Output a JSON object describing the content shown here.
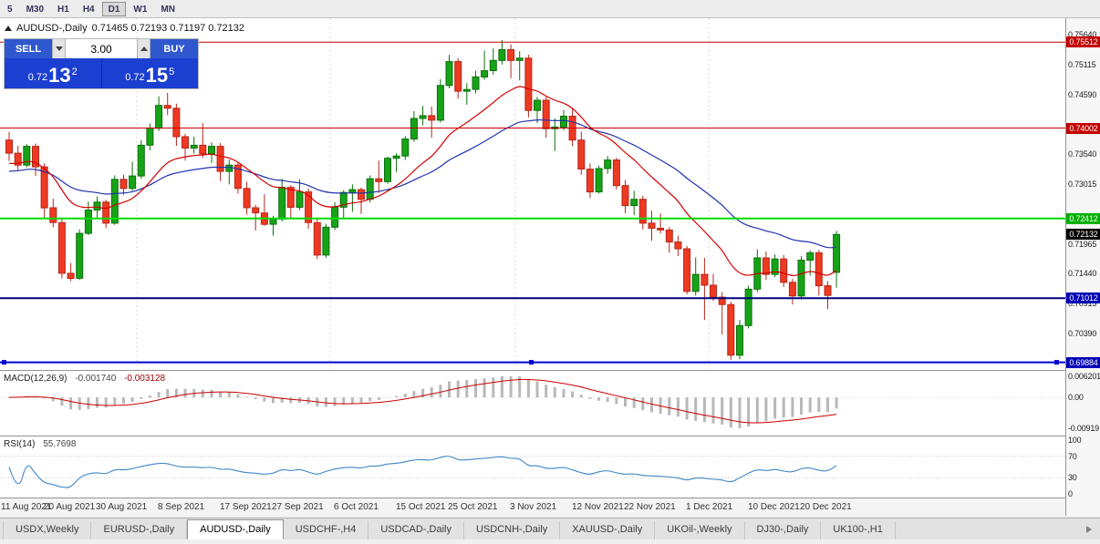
{
  "toolbar": {
    "timeframes": [
      {
        "label": "5",
        "active": false
      },
      {
        "label": "M30",
        "active": false
      },
      {
        "label": "H1",
        "active": false
      },
      {
        "label": "H4",
        "active": false
      },
      {
        "label": "D1",
        "active": true
      },
      {
        "label": "W1",
        "active": false
      },
      {
        "label": "MN",
        "active": false
      }
    ]
  },
  "chart_header": {
    "symbol": "AUDUSD-,Daily",
    "ohlc_text": "0.71465 0.72193 0.71197 0.72132"
  },
  "trade_panel": {
    "sell_label": "SELL",
    "buy_label": "BUY",
    "lot_value": "3.00",
    "sell_price": {
      "base": "0.72",
      "big": "13",
      "sup": "2"
    },
    "buy_price": {
      "base": "0.72",
      "big": "15",
      "sup": "5"
    }
  },
  "price_axis": {
    "labels": [
      {
        "text": "0.75640",
        "price": 0.7564
      },
      {
        "text": "0.75115",
        "price": 0.75115
      },
      {
        "text": "0.74590",
        "price": 0.7459
      },
      {
        "text": "0.73540",
        "price": 0.7354
      },
      {
        "text": "0.73015",
        "price": 0.73015
      },
      {
        "text": "0.71965",
        "price": 0.71965
      },
      {
        "text": "0.71440",
        "price": 0.7144
      },
      {
        "text": "0.70915",
        "price": 0.70915
      },
      {
        "text": "0.70390",
        "price": 0.7039
      }
    ],
    "badges": [
      {
        "text": "0.75512",
        "price": 0.75512,
        "bg": "#c40000"
      },
      {
        "text": "0.74002",
        "price": 0.74002,
        "bg": "#c40000"
      },
      {
        "text": "0.72412",
        "price": 0.72412,
        "bg": "#00b000"
      },
      {
        "text": "0.72132",
        "price": 0.72132,
        "bg": "#000000"
      },
      {
        "text": "0.71012",
        "price": 0.71012,
        "bg": "#0000b8"
      },
      {
        "text": "0.69884",
        "price": 0.69884,
        "bg": "#0000b8"
      }
    ]
  },
  "hlines": [
    {
      "price": 0.75512,
      "color": "#c40000",
      "width": 1
    },
    {
      "price": 0.74002,
      "color": "#c40000",
      "width": 1
    },
    {
      "price": 0.72412,
      "color": "#00dd00",
      "width": 2
    },
    {
      "price": 0.71012,
      "color": "#000080",
      "width": 2
    },
    {
      "price": 0.69884,
      "color": "#0000d0",
      "width": 2,
      "handles": true
    }
  ],
  "indicators": {
    "macd": {
      "label": "MACD(12,26,9)",
      "value_main": "-0.001740",
      "value_signal": "-0.003128",
      "axis_max": "0.006201",
      "axis_zero": "0.00",
      "axis_min": "-0.00919",
      "histogram_color": "#b8b8b8",
      "signal_color": "#cc0000"
    },
    "rsi": {
      "label": "RSI(14)",
      "value": "55.7698",
      "axis_labels": [
        "100",
        "70",
        "30",
        "0"
      ],
      "levels": [
        70,
        30
      ],
      "line_color": "#3e86c8"
    }
  },
  "chart_data": {
    "type": "candlestick",
    "title": "AUDUSD-,Daily",
    "y_range": [
      0.6975,
      0.759
    ],
    "colors": {
      "up": "#17a317",
      "up_border": "#0e700e",
      "down": "#ee3a22",
      "down_border": "#b5271a"
    },
    "ma": [
      {
        "period": 13,
        "color": "#d40000"
      },
      {
        "period": 30,
        "color": "#1f33b0"
      }
    ],
    "month_separator_indices": [
      15,
      37,
      58,
      80
    ],
    "date_ticks": [
      {
        "index": 0,
        "label": "11 Aug 2021"
      },
      {
        "index": 7,
        "label": "20 Aug 2021"
      },
      {
        "index": 13,
        "label": "30 Aug 2021"
      },
      {
        "index": 20,
        "label": "8 Sep 2021"
      },
      {
        "index": 27,
        "label": "17 Sep 2021"
      },
      {
        "index": 33,
        "label": "27 Sep 2021"
      },
      {
        "index": 40,
        "label": "6 Oct 2021"
      },
      {
        "index": 47,
        "label": "15 Oct 2021"
      },
      {
        "index": 53,
        "label": "25 Oct 2021"
      },
      {
        "index": 60,
        "label": "3 Nov 2021"
      },
      {
        "index": 67,
        "label": "12 Nov 2021"
      },
      {
        "index": 73,
        "label": "22 Nov 2021"
      },
      {
        "index": 80,
        "label": "1 Dec 2021"
      },
      {
        "index": 87,
        "label": "10 Dec 2021"
      },
      {
        "index": 93,
        "label": "20 Dec 2021"
      }
    ],
    "ohlc": [
      [
        0.7379,
        0.7393,
        0.7342,
        0.7356
      ],
      [
        0.7356,
        0.7369,
        0.7326,
        0.7335
      ],
      [
        0.7335,
        0.7372,
        0.7331,
        0.7368
      ],
      [
        0.7368,
        0.7373,
        0.7316,
        0.7332
      ],
      [
        0.7332,
        0.7338,
        0.7241,
        0.726
      ],
      [
        0.726,
        0.7276,
        0.7226,
        0.7234
      ],
      [
        0.7234,
        0.7241,
        0.7136,
        0.7145
      ],
      [
        0.7145,
        0.7163,
        0.7131,
        0.7136
      ],
      [
        0.7136,
        0.7222,
        0.7133,
        0.7215
      ],
      [
        0.7215,
        0.7271,
        0.7212,
        0.7256
      ],
      [
        0.7256,
        0.728,
        0.7243,
        0.727
      ],
      [
        0.727,
        0.7274,
        0.7224,
        0.7233
      ],
      [
        0.7233,
        0.7317,
        0.723,
        0.731
      ],
      [
        0.731,
        0.7318,
        0.7283,
        0.7294
      ],
      [
        0.7294,
        0.7341,
        0.729,
        0.7316
      ],
      [
        0.7316,
        0.7379,
        0.7311,
        0.737
      ],
      [
        0.737,
        0.7408,
        0.7361,
        0.74
      ],
      [
        0.74,
        0.7456,
        0.7395,
        0.744
      ],
      [
        0.744,
        0.7462,
        0.7423,
        0.7435
      ],
      [
        0.7435,
        0.7443,
        0.7369,
        0.7385
      ],
      [
        0.7385,
        0.739,
        0.7343,
        0.7365
      ],
      [
        0.7365,
        0.7385,
        0.7355,
        0.737
      ],
      [
        0.737,
        0.7409,
        0.7348,
        0.7355
      ],
      [
        0.7355,
        0.7375,
        0.7339,
        0.7368
      ],
      [
        0.7368,
        0.7374,
        0.7307,
        0.7324
      ],
      [
        0.7324,
        0.7345,
        0.7301,
        0.7335
      ],
      [
        0.7335,
        0.7339,
        0.7285,
        0.7294
      ],
      [
        0.7294,
        0.7306,
        0.7248,
        0.726
      ],
      [
        0.726,
        0.7265,
        0.722,
        0.7251
      ],
      [
        0.7251,
        0.7284,
        0.7228,
        0.7231
      ],
      [
        0.7231,
        0.7246,
        0.7211,
        0.724
      ],
      [
        0.724,
        0.7311,
        0.7236,
        0.7296
      ],
      [
        0.7296,
        0.73,
        0.724,
        0.7261
      ],
      [
        0.7261,
        0.731,
        0.7256,
        0.7288
      ],
      [
        0.7288,
        0.7294,
        0.7223,
        0.7234
      ],
      [
        0.7234,
        0.724,
        0.717,
        0.7177
      ],
      [
        0.7177,
        0.7232,
        0.7172,
        0.7226
      ],
      [
        0.7226,
        0.727,
        0.7221,
        0.7261
      ],
      [
        0.7261,
        0.7291,
        0.724,
        0.7287
      ],
      [
        0.7287,
        0.7301,
        0.7253,
        0.7292
      ],
      [
        0.7292,
        0.7296,
        0.7249,
        0.7275
      ],
      [
        0.7275,
        0.7317,
        0.7269,
        0.7311
      ],
      [
        0.7311,
        0.7343,
        0.7286,
        0.7306
      ],
      [
        0.7306,
        0.735,
        0.7302,
        0.7347
      ],
      [
        0.7347,
        0.7356,
        0.7323,
        0.7351
      ],
      [
        0.7351,
        0.7386,
        0.7344,
        0.7381
      ],
      [
        0.7381,
        0.743,
        0.7376,
        0.7417
      ],
      [
        0.7417,
        0.7439,
        0.7405,
        0.7422
      ],
      [
        0.7422,
        0.7438,
        0.7383,
        0.7414
      ],
      [
        0.7414,
        0.7486,
        0.741,
        0.7475
      ],
      [
        0.7475,
        0.7529,
        0.747,
        0.7517
      ],
      [
        0.7517,
        0.7523,
        0.7452,
        0.7465
      ],
      [
        0.7465,
        0.7479,
        0.7441,
        0.7468
      ],
      [
        0.7468,
        0.7501,
        0.7461,
        0.749
      ],
      [
        0.749,
        0.7536,
        0.7485,
        0.7501
      ],
      [
        0.7501,
        0.754,
        0.7494,
        0.7519
      ],
      [
        0.7519,
        0.7555,
        0.7512,
        0.7538
      ],
      [
        0.7538,
        0.7547,
        0.7488,
        0.7519
      ],
      [
        0.7519,
        0.7535,
        0.7484,
        0.7523
      ],
      [
        0.7523,
        0.7529,
        0.7419,
        0.7431
      ],
      [
        0.7431,
        0.7455,
        0.7409,
        0.7449
      ],
      [
        0.7449,
        0.7455,
        0.7383,
        0.7399
      ],
      [
        0.7399,
        0.7417,
        0.736,
        0.7402
      ],
      [
        0.7402,
        0.7432,
        0.7396,
        0.7421
      ],
      [
        0.7421,
        0.7436,
        0.7368,
        0.7379
      ],
      [
        0.7379,
        0.7394,
        0.7318,
        0.7328
      ],
      [
        0.7328,
        0.7338,
        0.7277,
        0.7288
      ],
      [
        0.7288,
        0.7334,
        0.7285,
        0.7329
      ],
      [
        0.7329,
        0.7351,
        0.732,
        0.7344
      ],
      [
        0.7344,
        0.7348,
        0.7292,
        0.7299
      ],
      [
        0.7299,
        0.7309,
        0.7251,
        0.7264
      ],
      [
        0.7264,
        0.729,
        0.7247,
        0.7275
      ],
      [
        0.7275,
        0.7281,
        0.7222,
        0.7233
      ],
      [
        0.7233,
        0.7255,
        0.7202,
        0.7224
      ],
      [
        0.7224,
        0.725,
        0.7215,
        0.7221
      ],
      [
        0.7221,
        0.7226,
        0.7181,
        0.72
      ],
      [
        0.72,
        0.7211,
        0.7175,
        0.7188
      ],
      [
        0.7188,
        0.7193,
        0.7108,
        0.7113
      ],
      [
        0.7113,
        0.7173,
        0.7106,
        0.7143
      ],
      [
        0.7143,
        0.7172,
        0.7063,
        0.7124
      ],
      [
        0.7124,
        0.7144,
        0.7096,
        0.7103
      ],
      [
        0.7103,
        0.7112,
        0.7037,
        0.709
      ],
      [
        0.709,
        0.7095,
        0.6993,
        0.7001
      ],
      [
        0.7001,
        0.7063,
        0.6994,
        0.7053
      ],
      [
        0.7053,
        0.7123,
        0.7048,
        0.7117
      ],
      [
        0.7117,
        0.7187,
        0.7112,
        0.7172
      ],
      [
        0.7172,
        0.7183,
        0.7133,
        0.7143
      ],
      [
        0.7143,
        0.7178,
        0.7138,
        0.717
      ],
      [
        0.717,
        0.7177,
        0.7121,
        0.7129
      ],
      [
        0.7129,
        0.7135,
        0.709,
        0.7105
      ],
      [
        0.7105,
        0.7175,
        0.7099,
        0.7168
      ],
      [
        0.7168,
        0.7185,
        0.7141,
        0.7181
      ],
      [
        0.7181,
        0.7186,
        0.7106,
        0.7123
      ],
      [
        0.7123,
        0.7131,
        0.7082,
        0.7106
      ],
      [
        0.71465,
        0.72193,
        0.71197,
        0.72132
      ]
    ]
  },
  "tabs": [
    {
      "label": "USDX,Weekly",
      "active": false
    },
    {
      "label": "EURUSD-,Daily",
      "active": false
    },
    {
      "label": "AUDUSD-,Daily",
      "active": true
    },
    {
      "label": "USDCHF-,H4",
      "active": false
    },
    {
      "label": "USDCAD-,Daily",
      "active": false
    },
    {
      "label": "USDCNH-,Daily",
      "active": false
    },
    {
      "label": "XAUUSD-,Daily",
      "active": false
    },
    {
      "label": "UKOil-,Weekly",
      "active": false
    },
    {
      "label": "DJ30-,Daily",
      "active": false
    },
    {
      "label": "UK100-,H1",
      "active": false
    }
  ]
}
